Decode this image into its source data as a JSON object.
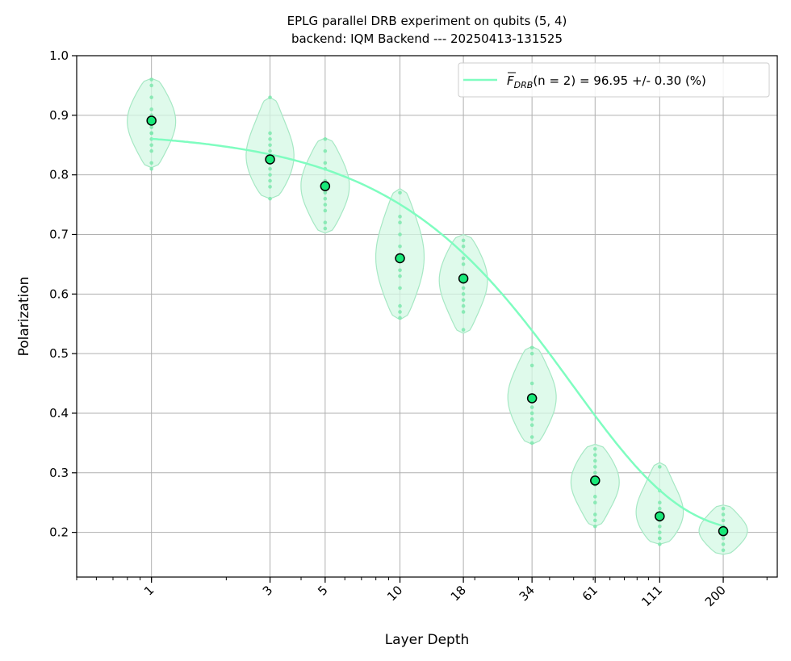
{
  "chart_data": {
    "type": "scatter",
    "title_line1": "EPLG parallel DRB experiment on qubits (5, 4)",
    "title_line2": "backend: IQM Backend --- 20250413-131525",
    "xlabel": "Layer Depth",
    "ylabel": "Polarization",
    "x_scale": "log",
    "xlim": [
      0.5,
      330
    ],
    "ylim": [
      0.125,
      1.0
    ],
    "x_tick_labels": [
      "1",
      "3",
      "5",
      "10",
      "18",
      "34",
      "61",
      "111",
      "200"
    ],
    "y_ticks": [
      0.2,
      0.3,
      0.4,
      0.5,
      0.6,
      0.7,
      0.8,
      0.9,
      1.0
    ],
    "y_tick_labels": [
      "0.2",
      "0.3",
      "0.4",
      "0.5",
      "0.6",
      "0.7",
      "0.8",
      "0.9",
      "1.0"
    ],
    "grid": true,
    "legend_position": "top-right",
    "legend_label": "F_DRB(n = 2) = 96.95 +/- 0.30 (%)",
    "legend_main": "F",
    "legend_sub": "DRB",
    "legend_rest": "(n = 2) = 96.95 +/- 0.30 (%)",
    "colors": {
      "fit": "#7ffdc0",
      "violin_fill": "#d4f8e4",
      "violin_edge": "#a6e8c4",
      "points": "#7ee8ae",
      "mean_marker": "#19e879",
      "grid": "#b0b0b0"
    },
    "depths": [
      1,
      3,
      5,
      10,
      18,
      34,
      61,
      111,
      200
    ],
    "means": [
      0.891,
      0.826,
      0.781,
      0.66,
      0.626,
      0.425,
      0.287,
      0.227,
      0.202
    ],
    "violin_ranges": [
      [
        0.812,
        0.962
      ],
      [
        0.76,
        0.93
      ],
      [
        0.702,
        0.862
      ],
      [
        0.557,
        0.777
      ],
      [
        0.534,
        0.7
      ],
      [
        0.348,
        0.512
      ],
      [
        0.21,
        0.348
      ],
      [
        0.18,
        0.317
      ],
      [
        0.163,
        0.246
      ]
    ],
    "samples": [
      [
        0.96,
        0.95,
        0.93,
        0.91,
        0.9,
        0.89,
        0.88,
        0.87,
        0.87,
        0.86,
        0.85,
        0.84,
        0.82,
        0.81
      ],
      [
        0.93,
        0.87,
        0.86,
        0.85,
        0.84,
        0.83,
        0.82,
        0.81,
        0.8,
        0.79,
        0.78,
        0.76
      ],
      [
        0.86,
        0.84,
        0.82,
        0.81,
        0.79,
        0.78,
        0.77,
        0.76,
        0.75,
        0.74,
        0.72,
        0.71
      ],
      [
        0.77,
        0.73,
        0.72,
        0.7,
        0.68,
        0.66,
        0.64,
        0.63,
        0.61,
        0.58,
        0.57,
        0.56
      ],
      [
        0.69,
        0.68,
        0.66,
        0.65,
        0.63,
        0.62,
        0.61,
        0.6,
        0.59,
        0.58,
        0.57,
        0.54
      ],
      [
        0.51,
        0.5,
        0.48,
        0.45,
        0.43,
        0.42,
        0.41,
        0.4,
        0.39,
        0.38,
        0.36,
        0.35
      ],
      [
        0.34,
        0.33,
        0.32,
        0.31,
        0.3,
        0.29,
        0.28,
        0.26,
        0.25,
        0.23,
        0.22,
        0.21
      ],
      [
        0.31,
        0.27,
        0.25,
        0.24,
        0.23,
        0.22,
        0.21,
        0.2,
        0.19,
        0.19,
        0.18
      ],
      [
        0.24,
        0.23,
        0.22,
        0.21,
        0.21,
        0.2,
        0.2,
        0.19,
        0.18,
        0.17
      ]
    ],
    "fit": {
      "model": "A * p^x + B",
      "A": 0.675,
      "p": 0.98,
      "B": 0.199
    }
  }
}
